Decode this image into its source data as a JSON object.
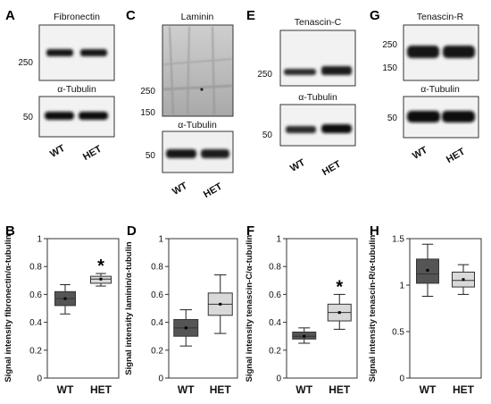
{
  "blots": [
    {
      "letter": "A",
      "target": "Fibronectin",
      "target_mw": [
        "250"
      ],
      "tubulin": "α-Tubulin",
      "tubulin_mw": "50",
      "lanes": [
        "WT",
        "HET"
      ]
    },
    {
      "letter": "C",
      "target": "Laminin",
      "target_mw": [
        "250",
        "150"
      ],
      "tubulin": "α-Tubulin",
      "tubulin_mw": "50",
      "lanes": [
        "WT",
        "HET"
      ]
    },
    {
      "letter": "E",
      "target": "Tenascin-C",
      "target_mw": [
        "250"
      ],
      "tubulin": "α-Tubulin",
      "tubulin_mw": "50",
      "lanes": [
        "WT",
        "HET"
      ]
    },
    {
      "letter": "G",
      "target": "Tenascin-R",
      "target_mw": [
        "250",
        "150"
      ],
      "tubulin": "α-Tubulin",
      "tubulin_mw": "50",
      "lanes": [
        "WT",
        "HET"
      ]
    }
  ],
  "chart_data": [
    {
      "letter": "B",
      "type": "box",
      "title": "",
      "xlabel": "",
      "ylabel": "Signal intensity fibronectin/α-tubulin",
      "ylim": [
        0,
        1
      ],
      "yticks": [
        "0",
        "0.2",
        "0.4",
        "0.6",
        "0.8",
        "1"
      ],
      "categories": [
        "WT",
        "HET"
      ],
      "boxes": [
        {
          "name": "WT",
          "min": 0.46,
          "q1": 0.52,
          "median": 0.57,
          "q3": 0.62,
          "max": 0.67,
          "mean": 0.57,
          "fill": "#555555"
        },
        {
          "name": "HET",
          "min": 0.66,
          "q1": 0.68,
          "median": 0.71,
          "q3": 0.73,
          "max": 0.75,
          "mean": 0.71,
          "fill": "#d9d9d9"
        }
      ],
      "significance": {
        "category": "HET",
        "symbol": "*"
      }
    },
    {
      "letter": "D",
      "type": "box",
      "title": "",
      "xlabel": "",
      "ylabel": "Signal intensity laminin/α-tubulin",
      "ylim": [
        0,
        1
      ],
      "yticks": [
        "0",
        "0.2",
        "0.4",
        "0.6",
        "0.8",
        "1"
      ],
      "categories": [
        "WT",
        "HET"
      ],
      "boxes": [
        {
          "name": "WT",
          "min": 0.23,
          "q1": 0.3,
          "median": 0.36,
          "q3": 0.42,
          "max": 0.49,
          "mean": 0.36,
          "fill": "#555555"
        },
        {
          "name": "HET",
          "min": 0.32,
          "q1": 0.45,
          "median": 0.53,
          "q3": 0.61,
          "max": 0.74,
          "mean": 0.53,
          "fill": "#d9d9d9"
        }
      ],
      "significance": null
    },
    {
      "letter": "F",
      "type": "box",
      "title": "",
      "xlabel": "",
      "ylabel": "Signal intensity tenascin-C/α-tubulin",
      "ylim": [
        0,
        1
      ],
      "yticks": [
        "0",
        "0.2",
        "0.4",
        "0.6",
        "0.8",
        "1"
      ],
      "categories": [
        "WT",
        "HET"
      ],
      "boxes": [
        {
          "name": "WT",
          "min": 0.25,
          "q1": 0.28,
          "median": 0.3,
          "q3": 0.33,
          "max": 0.36,
          "mean": 0.3,
          "fill": "#555555"
        },
        {
          "name": "HET",
          "min": 0.35,
          "q1": 0.41,
          "median": 0.47,
          "q3": 0.53,
          "max": 0.6,
          "mean": 0.47,
          "fill": "#d9d9d9"
        }
      ],
      "significance": {
        "category": "HET",
        "symbol": "*"
      }
    },
    {
      "letter": "H",
      "type": "box",
      "title": "",
      "xlabel": "",
      "ylabel": "Signal intensity tenascin-R/α-tubulin",
      "ylim": [
        0,
        1.5
      ],
      "yticks": [
        "0",
        "0.5",
        "1",
        "1.5"
      ],
      "categories": [
        "WT",
        "HET"
      ],
      "boxes": [
        {
          "name": "WT",
          "min": 0.88,
          "q1": 1.02,
          "median": 1.12,
          "q3": 1.28,
          "max": 1.44,
          "mean": 1.16,
          "fill": "#555555"
        },
        {
          "name": "HET",
          "min": 0.9,
          "q1": 0.98,
          "median": 1.05,
          "q3": 1.14,
          "max": 1.22,
          "mean": 1.06,
          "fill": "#d9d9d9"
        }
      ],
      "significance": null
    }
  ]
}
